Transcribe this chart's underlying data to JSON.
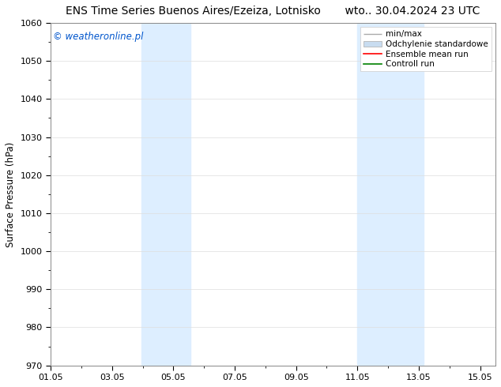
{
  "title": "ENS Time Series Buenos Aires/Ezeiza, Lotnisko       wto.. 30.04.2024 23 UTC",
  "ylabel": "Surface Pressure (hPa)",
  "watermark": "© weatheronline.pl",
  "watermark_color": "#0055cc",
  "ylim": [
    970,
    1060
  ],
  "yticks": [
    970,
    980,
    990,
    1000,
    1010,
    1020,
    1030,
    1040,
    1050,
    1060
  ],
  "xlim": [
    1.0,
    15.5
  ],
  "xtick_labels": [
    "01.05",
    "03.05",
    "05.05",
    "07.05",
    "09.05",
    "11.05",
    "13.05",
    "15.05"
  ],
  "xtick_positions": [
    1,
    3,
    5,
    7,
    9,
    11,
    13,
    15
  ],
  "shaded_bands": [
    {
      "x_start": 3.95,
      "x_end": 5.55
    },
    {
      "x_start": 11.0,
      "x_end": 13.15
    }
  ],
  "shade_color": "#ddeeff",
  "background_color": "#ffffff",
  "plot_bg_color": "#ffffff",
  "legend_items": [
    {
      "label": "min/max",
      "color": "#aaaaaa"
    },
    {
      "label": "Odchylenie standardowe",
      "color": "#c8dcf0"
    },
    {
      "label": "Ensemble mean run",
      "color": "#ff0000"
    },
    {
      "label": "Controll run",
      "color": "#008000"
    }
  ],
  "title_fontsize": 10,
  "tick_fontsize": 8,
  "legend_fontsize": 7.5,
  "ylabel_fontsize": 8.5
}
